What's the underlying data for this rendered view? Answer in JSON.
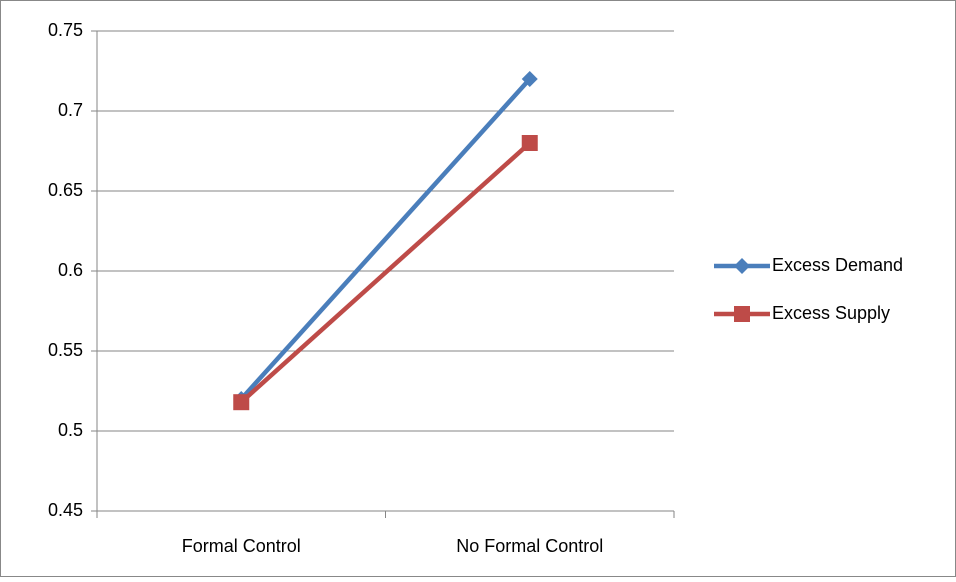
{
  "chart_data": {
    "type": "line",
    "categories": [
      "Formal Control",
      "No Formal Control"
    ],
    "series": [
      {
        "name": "Excess Demand",
        "color": "#4a7ebb",
        "marker": "diamond",
        "values": [
          0.52,
          0.72
        ]
      },
      {
        "name": "Excess Supply",
        "color": "#be4b48",
        "marker": "square",
        "values": [
          0.518,
          0.68
        ]
      }
    ],
    "ylim": [
      0.45,
      0.75
    ],
    "yticks": [
      0.45,
      0.5,
      0.55,
      0.6,
      0.65,
      0.7,
      0.75
    ],
    "grid": true,
    "legend": "right"
  }
}
